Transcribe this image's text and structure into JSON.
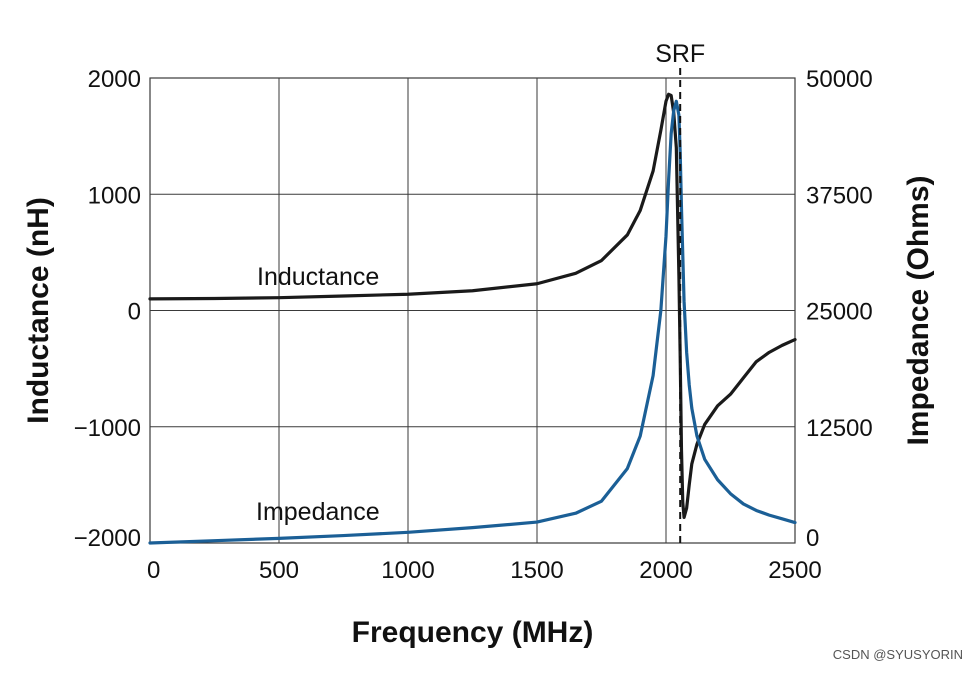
{
  "chart_data": {
    "type": "line",
    "title": "",
    "xlabel": "Frequency (MHz)",
    "ylabel_left": "Inductance (nH)",
    "ylabel_right": "Impedance (Ohms)",
    "xlim": [
      0,
      2500
    ],
    "ylim_left": [
      -2000,
      2000
    ],
    "ylim_right": [
      0,
      50000
    ],
    "x_ticks": [
      "0",
      "500",
      "1000",
      "1500",
      "2000",
      "2500"
    ],
    "y_left_ticks": [
      "2000",
      "1000",
      "0",
      "−1000",
      "−2000"
    ],
    "y_right_ticks": [
      "50000",
      "37500",
      "25000",
      "12500",
      "0"
    ],
    "grid": true,
    "srf_label": "SRF",
    "srf_value": 2055,
    "series": [
      {
        "name": "Inductance",
        "axis": "left",
        "color": "#1a1a1a",
        "x": [
          0,
          250,
          500,
          750,
          1000,
          1250,
          1500,
          1650,
          1750,
          1850,
          1900,
          1950,
          1980,
          2000,
          2010,
          2020,
          2030,
          2040,
          2050,
          2055,
          2060,
          2065,
          2070,
          2080,
          2090,
          2100,
          2120,
          2150,
          2200,
          2250,
          2300,
          2350,
          2400,
          2450,
          2500
        ],
        "values": [
          100,
          103,
          110,
          125,
          140,
          170,
          230,
          320,
          430,
          650,
          860,
          1200,
          1550,
          1800,
          1860,
          1850,
          1700,
          1400,
          300,
          -400,
          -1200,
          -1650,
          -1780,
          -1700,
          -1500,
          -1320,
          -1150,
          -980,
          -820,
          -720,
          -580,
          -440,
          -360,
          -300,
          -250
        ]
      },
      {
        "name": "Impedance",
        "axis": "right",
        "color": "#1b5f96",
        "x": [
          0,
          250,
          500,
          750,
          1000,
          1250,
          1500,
          1650,
          1750,
          1850,
          1900,
          1950,
          1980,
          2000,
          2010,
          2020,
          2030,
          2040,
          2050,
          2055,
          2060,
          2070,
          2080,
          2090,
          2100,
          2120,
          2150,
          2200,
          2250,
          2300,
          2350,
          2400,
          2450,
          2500
        ],
        "values": [
          0,
          250,
          500,
          800,
          1150,
          1650,
          2250,
          3200,
          4500,
          8000,
          11500,
          18000,
          25000,
          33000,
          39000,
          44000,
          46500,
          47500,
          46000,
          42000,
          36000,
          26000,
          20500,
          17000,
          14500,
          11500,
          9000,
          6800,
          5300,
          4200,
          3500,
          3000,
          2600,
          2200
        ]
      }
    ],
    "annotations": {
      "inductance_label": "Inductance",
      "impedance_label": "Impedance"
    }
  },
  "watermark": "CSDN @SYUSYORIN"
}
